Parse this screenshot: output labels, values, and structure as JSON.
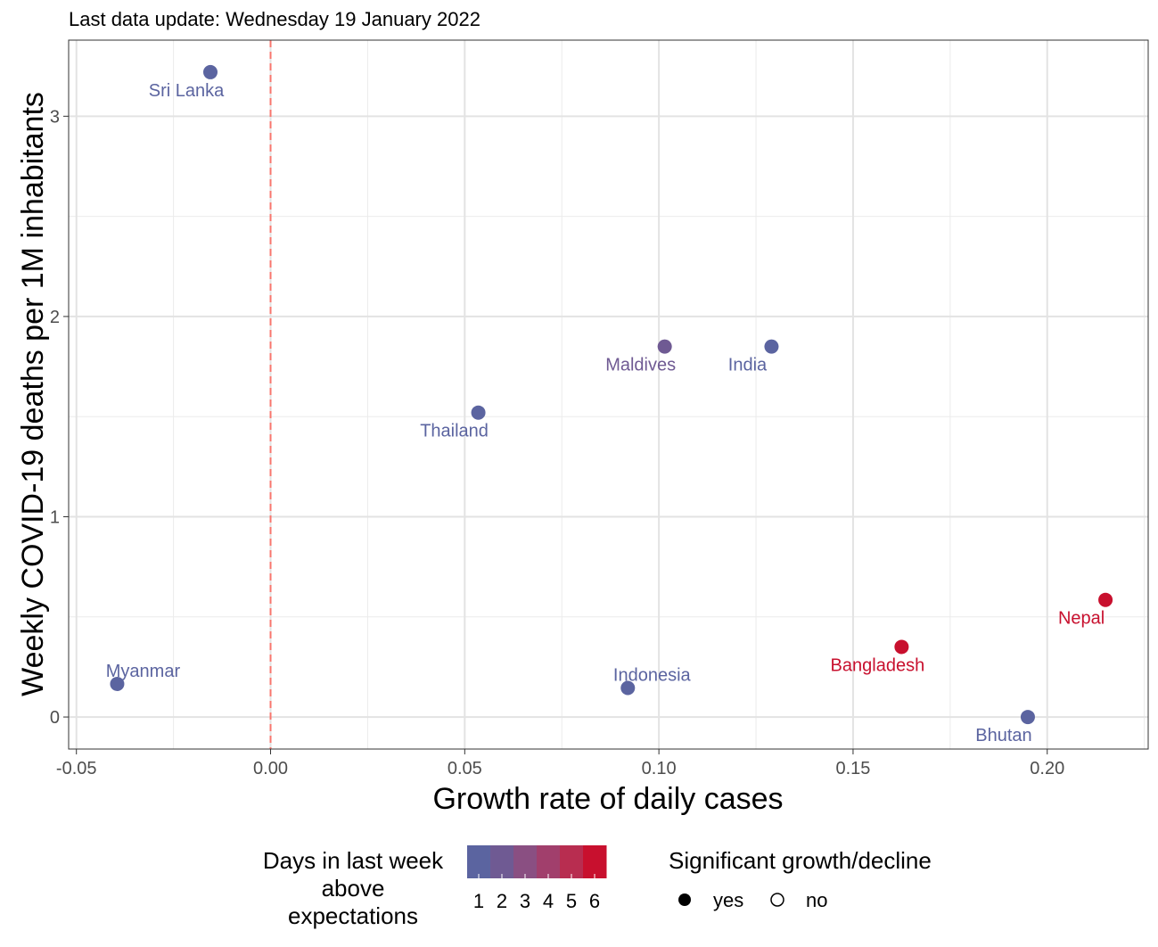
{
  "subtitle": "Last data update: Wednesday 19 January 2022",
  "chart_data": {
    "type": "scatter",
    "xlabel": "Growth rate of daily cases",
    "ylabel": "Weekly COVID-19 deaths per 1M inhabitants",
    "xlim": [
      -0.052,
      0.226
    ],
    "ylim": [
      -0.16,
      3.38
    ],
    "x_ticks": [
      -0.05,
      0.0,
      0.05,
      0.1,
      0.15,
      0.2
    ],
    "x_tick_labels": [
      "-0.05",
      "0.00",
      "0.05",
      "0.10",
      "0.15",
      "0.20"
    ],
    "y_ticks": [
      0,
      1,
      2,
      3
    ],
    "y_tick_labels": [
      "0",
      "1",
      "2",
      "3"
    ],
    "grid": true,
    "reference_line": {
      "x": 0.0,
      "color": "#f8766d",
      "style": "dashed"
    },
    "points": [
      {
        "label": "Sri Lanka",
        "x": -0.0155,
        "y": 3.22,
        "days": 0,
        "significant": true
      },
      {
        "label": "Maldives",
        "x": 0.1015,
        "y": 1.85,
        "days": 1,
        "significant": true
      },
      {
        "label": "India",
        "x": 0.129,
        "y": 1.85,
        "days": 0,
        "significant": true
      },
      {
        "label": "Thailand",
        "x": 0.0535,
        "y": 1.52,
        "days": 0,
        "significant": true
      },
      {
        "label": "Nepal",
        "x": 0.215,
        "y": 0.585,
        "days": 6,
        "significant": true
      },
      {
        "label": "Bangladesh",
        "x": 0.1625,
        "y": 0.35,
        "days": 5,
        "significant": true
      },
      {
        "label": "Myanmar",
        "x": -0.0395,
        "y": 0.165,
        "days": 0,
        "significant": true
      },
      {
        "label": "Indonesia",
        "x": 0.092,
        "y": 0.145,
        "days": 0,
        "significant": true
      },
      {
        "label": "Bhutan",
        "x": 0.195,
        "y": 0.0,
        "days": 0,
        "significant": true
      }
    ],
    "color_legend": {
      "title": [
        "Days in last week",
        "above",
        "expectations"
      ],
      "labels": [
        "1",
        "2",
        "3",
        "4",
        "5",
        "6"
      ],
      "colors": [
        "#5b64a0",
        "#6f5a93",
        "#8a4f82",
        "#a13f6c",
        "#b82d50",
        "#c8102e"
      ]
    },
    "shape_legend": {
      "title": "Significant growth/decline",
      "entries": [
        {
          "label": "yes",
          "filled": true
        },
        {
          "label": "no",
          "filled": false
        }
      ]
    }
  }
}
